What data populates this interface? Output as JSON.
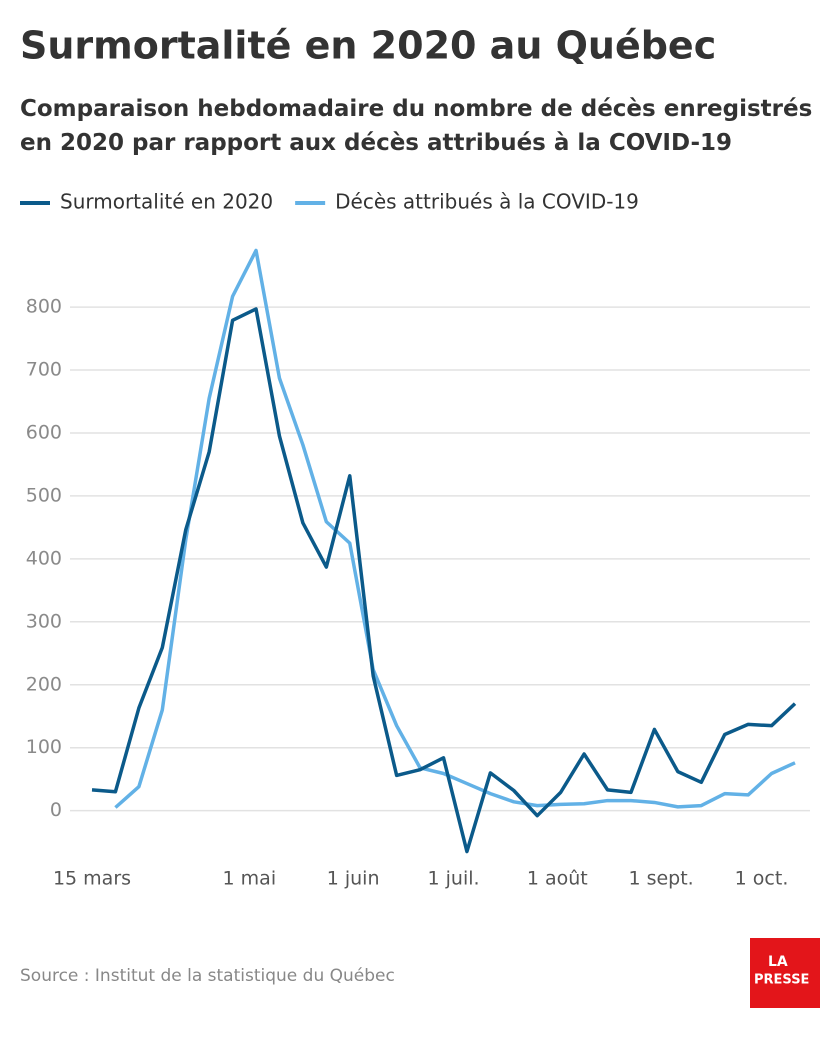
{
  "chart_data": {
    "type": "line",
    "title": "Surmortalité en 2020 au Québec",
    "subtitle": "Comparaison hebdomadaire du nombre de décès enregistrés en 2020 par rapport aux décès attribués à la COVID-19",
    "source": "Source : Institut de la statistique du Québec",
    "logo": [
      "LA",
      "PRESSE"
    ],
    "x": [
      "2020-03-15",
      "2020-03-22",
      "2020-03-29",
      "2020-04-05",
      "2020-04-12",
      "2020-04-19",
      "2020-04-26",
      "2020-05-03",
      "2020-05-10",
      "2020-05-17",
      "2020-05-24",
      "2020-05-31",
      "2020-06-07",
      "2020-06-14",
      "2020-06-21",
      "2020-06-28",
      "2020-07-05",
      "2020-07-12",
      "2020-07-19",
      "2020-07-26",
      "2020-08-02",
      "2020-08-09",
      "2020-08-16",
      "2020-08-23",
      "2020-08-30",
      "2020-09-06",
      "2020-09-13",
      "2020-09-20",
      "2020-09-27",
      "2020-10-04",
      "2020-10-11"
    ],
    "series": [
      {
        "name": "Surmortalité en 2020",
        "color": "#0b5a8a",
        "values": [
          33,
          30,
          163,
          259,
          446,
          570,
          779,
          797,
          595,
          457,
          387,
          532,
          214,
          56,
          65,
          84,
          -65,
          60,
          32,
          -8,
          29,
          90,
          33,
          29,
          129,
          62,
          45,
          121,
          137,
          135,
          170
        ]
      },
      {
        "name": "Décès attribués à la COVID-19",
        "color": "#62b1e6",
        "values": [
          null,
          5,
          38,
          160,
          430,
          655,
          817,
          890,
          687,
          581,
          459,
          425,
          224,
          135,
          68,
          59,
          43,
          27,
          14,
          8,
          10,
          11,
          16,
          16,
          13,
          6,
          8,
          27,
          25,
          59,
          76
        ]
      }
    ],
    "xlim": [
      "2020-03-15",
      "2020-10-11"
    ],
    "xticks": [
      {
        "value": "2020-03-15",
        "label": "15 mars"
      },
      {
        "value": "2020-05-01",
        "label": "1 mai"
      },
      {
        "value": "2020-06-01",
        "label": "1 juin"
      },
      {
        "value": "2020-07-01",
        "label": "1 juil."
      },
      {
        "value": "2020-08-01",
        "label": "1 août"
      },
      {
        "value": "2020-09-01",
        "label": "1 sept."
      },
      {
        "value": "2020-10-01",
        "label": "1 oct."
      }
    ],
    "ylim": [
      -80,
      905
    ],
    "yticks": [
      0,
      100,
      200,
      300,
      400,
      500,
      600,
      700,
      800
    ],
    "grid": true,
    "legend": "top"
  }
}
